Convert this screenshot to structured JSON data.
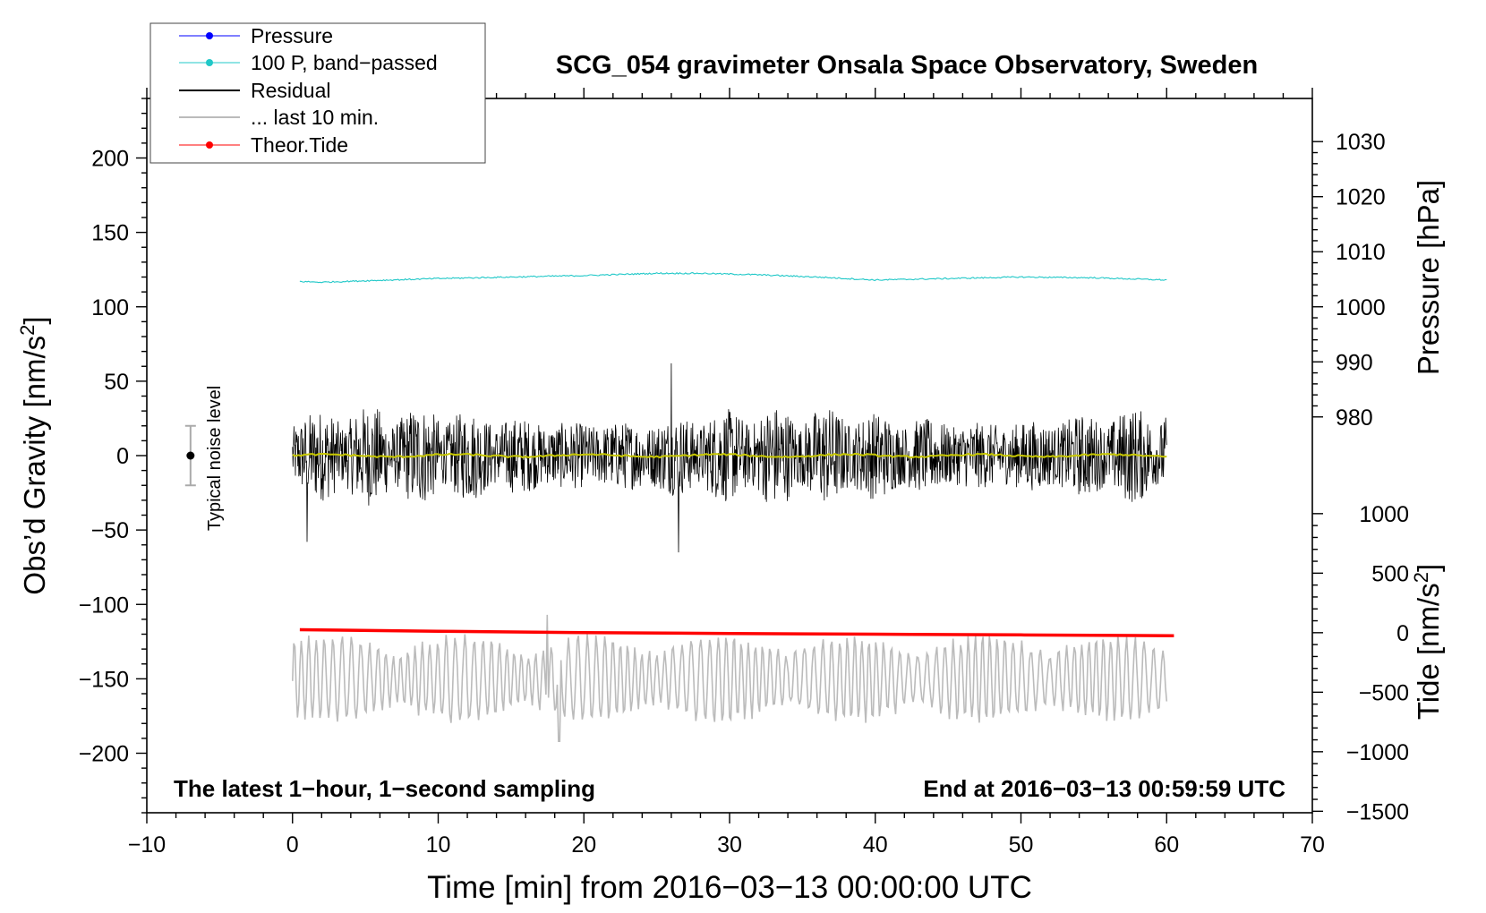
{
  "chart_data": {
    "type": "line",
    "title": "SCG_054 gravimeter Onsala Space Observatory, Sweden",
    "xlabel": "Time [min] from 2016−03−13 00:00:00 UTC",
    "ylabel_left": "Obs’d Gravity [nm/s",
    "ylabel_left_sup": "2",
    "ylabel_left_end": "]",
    "ylabel_right_pressure": "Pressure [hPa]",
    "ylabel_right_tide": "Tide [nm/s",
    "ylabel_right_tide_sup": "2",
    "ylabel_right_tide_end": "]",
    "xlim": [
      -10,
      70
    ],
    "ylim_left": [
      -240,
      240
    ],
    "x_ticks": [
      -10,
      0,
      10,
      20,
      30,
      40,
      50,
      60,
      70
    ],
    "x_tick_labels": [
      "−10",
      "0",
      "10",
      "20",
      "30",
      "40",
      "50",
      "60",
      "70"
    ],
    "y_left_ticks": [
      200,
      150,
      100,
      50,
      0,
      -50,
      -100,
      -150,
      -200
    ],
    "y_left_tick_labels": [
      "200",
      "150",
      "100",
      "50",
      "0",
      "−50",
      "−100",
      "−150",
      "−200"
    ],
    "pressure_axis": {
      "ticks": [
        1030,
        1020,
        1010,
        1000,
        990,
        980
      ],
      "tick_labels": [
        "1030",
        "1020",
        "1010",
        "1000",
        "990",
        "980"
      ],
      "gravity_equivalent": {
        "at_1000": 100,
        "per_hPa": 3.7
      }
    },
    "tide_axis": {
      "ticks": [
        1000,
        500,
        0,
        -500,
        -1000,
        -1500
      ],
      "tick_labels": [
        "1000",
        "500",
        "0",
        "−500",
        "−1000",
        "−1500"
      ],
      "gravity_equivalent": {
        "at_0": -119,
        "per_nms2": 0.08
      }
    },
    "legend": {
      "position": "top-left",
      "entries": [
        {
          "label": "Pressure",
          "color": "#0000ff",
          "marker": true
        },
        {
          "label": "100 P, band−passed",
          "color": "#20c8c8",
          "marker": true
        },
        {
          "label": "Residual",
          "color": "#000000",
          "marker": false
        },
        {
          "label": "... last 10 min.",
          "color": "#bbbbbb",
          "marker": false
        },
        {
          "label": "Theor.Tide",
          "color": "#ff0000",
          "marker": true
        }
      ]
    },
    "annotations": {
      "noise_label": "Typical noise level",
      "noise_bar": {
        "x": -7,
        "y": 0,
        "low": -20,
        "high": 20
      },
      "bottom_left": "The latest 1−hour, 1−second sampling",
      "bottom_right": "End at 2016−03−13 00:59:59 UTC"
    },
    "series": [
      {
        "name": "100 P, band−passed",
        "color": "#20c8c8",
        "x": [
          0.5,
          2,
          5,
          10,
          15,
          20,
          25,
          28,
          32,
          36,
          40,
          45,
          50,
          55,
          60
        ],
        "y": [
          117,
          116.5,
          117.5,
          119,
          120,
          121,
          122.5,
          122.5,
          121.5,
          120,
          118,
          119,
          120,
          119.5,
          118
        ]
      },
      {
        "name": "Residual",
        "color": "#000000",
        "x_range": [
          0,
          60
        ],
        "amplitude_nms2": 30,
        "extremes": [
          {
            "x": 26,
            "y": 62
          },
          {
            "x": 26.5,
            "y": -65
          },
          {
            "x": 1,
            "y": -58
          }
        ]
      },
      {
        "name": "Residual smoothed",
        "color": "#c8c800",
        "x": [
          0,
          10,
          20,
          30,
          40,
          50,
          60
        ],
        "y": [
          -1,
          0,
          -1,
          0,
          -1,
          0,
          -1
        ]
      },
      {
        "name": "... last 10 min.",
        "color": "#bbbbbb",
        "x_range": [
          0,
          60
        ],
        "center": -150,
        "amplitude_nms2": 28,
        "extremes": [
          {
            "x": 17.5,
            "y": -107
          },
          {
            "x": 18.3,
            "y": -192
          }
        ]
      },
      {
        "name": "Theor.Tide",
        "color": "#ff0000",
        "x": [
          0.5,
          10,
          20,
          30,
          40,
          50,
          60.5
        ],
        "y": [
          -117,
          -118,
          -119,
          -119.5,
          -120,
          -120.5,
          -121
        ]
      }
    ]
  }
}
